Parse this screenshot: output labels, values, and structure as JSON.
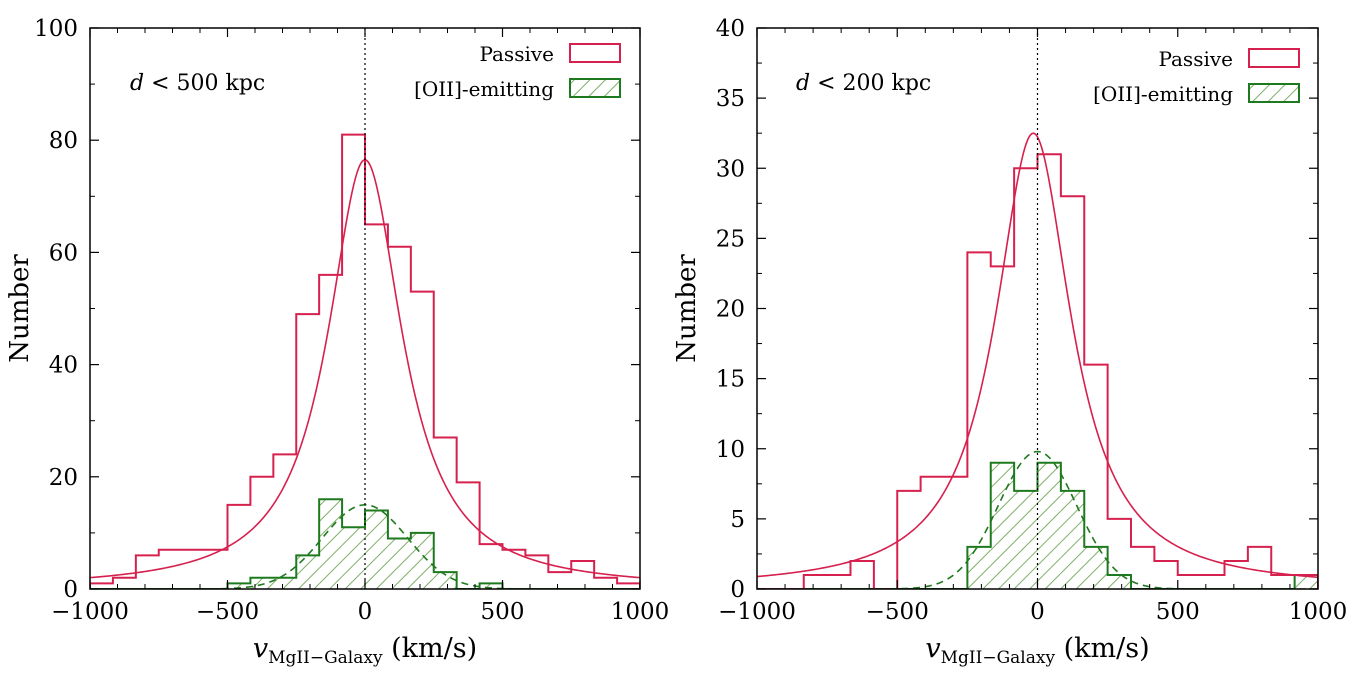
{
  "chart_data": [
    {
      "type": "histogram",
      "panel": "left",
      "annotation_text": "< 500 kpc",
      "annotation_var": "d",
      "xlabel_var": "v",
      "xlabel_sub": "MgII−Galaxy",
      "xlabel_unit": "(km/s)",
      "ylabel": "Number",
      "xlim": [
        -1000,
        1000
      ],
      "ylim": [
        0,
        100
      ],
      "xticks": [
        -1000,
        -500,
        0,
        500,
        1000
      ],
      "xtick_labels": [
        "−1000",
        "−500",
        "0",
        "500",
        "1000"
      ],
      "yticks": [
        0,
        20,
        40,
        60,
        80,
        100
      ],
      "ytick_labels": [
        "0",
        "20",
        "40",
        "60",
        "80",
        "100"
      ],
      "reference_line_x": 0,
      "legend": {
        "position": "top-right",
        "entries": [
          "Passive",
          "[OII]-emitting"
        ]
      },
      "colors": {
        "passive": "#d6204e",
        "oii": "#1e7a1e",
        "hatch_fill": "#7fae68"
      },
      "passive": {
        "name": "Passive",
        "bin_edges": [
          -1000,
          -916.7,
          -833.3,
          -750,
          -666.7,
          -583.3,
          -500,
          -416.7,
          -333.3,
          -250,
          -166.7,
          -83.3,
          0,
          83.3,
          166.7,
          250,
          333.3,
          416.7,
          500,
          583.3,
          666.7,
          750,
          833.3,
          916.7,
          1000
        ],
        "counts": [
          1,
          2,
          6,
          7,
          7,
          7,
          15,
          20,
          24,
          49,
          56,
          81,
          65,
          61,
          53,
          27,
          19,
          8,
          7,
          6,
          3,
          5,
          2,
          1
        ],
        "fit": {
          "model": "lorentzian",
          "amplitude": 76.5,
          "center": 0,
          "hwhm": 165
        }
      },
      "oii": {
        "name": "[OII]-emitting",
        "bin_edges": [
          -1000,
          -916.7,
          -833.3,
          -750,
          -666.7,
          -583.3,
          -500,
          -416.7,
          -333.3,
          -250,
          -166.7,
          -83.3,
          0,
          83.3,
          166.7,
          250,
          333.3,
          416.7,
          500,
          583.3,
          666.7,
          750,
          833.3,
          916.7,
          1000
        ],
        "counts": [
          0,
          0,
          0,
          0,
          0,
          0,
          1,
          2,
          2,
          6,
          16,
          11,
          14,
          9,
          10,
          3,
          0,
          1,
          0,
          0,
          0,
          0,
          0,
          0
        ],
        "fit": {
          "model": "gaussian",
          "amplitude": 15,
          "center": 0,
          "sigma": 155
        }
      }
    },
    {
      "type": "histogram",
      "panel": "right",
      "annotation_text": "< 200 kpc",
      "annotation_var": "d",
      "xlabel_var": "v",
      "xlabel_sub": "MgII−Galaxy",
      "xlabel_unit": "(km/s)",
      "ylabel": "Number",
      "xlim": [
        -1000,
        1000
      ],
      "ylim": [
        0,
        40
      ],
      "xticks": [
        -1000,
        -500,
        0,
        500,
        1000
      ],
      "xtick_labels": [
        "−1000",
        "−500",
        "0",
        "500",
        "1000"
      ],
      "yticks": [
        0,
        5,
        10,
        15,
        20,
        25,
        30,
        35,
        40
      ],
      "ytick_labels": [
        "0",
        "5",
        "10",
        "15",
        "20",
        "25",
        "30",
        "35",
        "40"
      ],
      "reference_line_x": 0,
      "legend": {
        "position": "top-right",
        "entries": [
          "Passive",
          "[OII]-emitting"
        ]
      },
      "colors": {
        "passive": "#d6204e",
        "oii": "#1e7a1e",
        "hatch_fill": "#7fae68"
      },
      "passive": {
        "name": "Passive",
        "bin_edges": [
          -1000,
          -916.7,
          -833.3,
          -750,
          -666.7,
          -583.3,
          -500,
          -416.7,
          -333.3,
          -250,
          -166.7,
          -83.3,
          0,
          83.3,
          166.7,
          250,
          333.3,
          416.7,
          500,
          583.3,
          666.7,
          750,
          833.3,
          916.7,
          1000
        ],
        "counts": [
          0,
          0,
          1,
          1,
          2,
          0,
          7,
          8,
          8,
          24,
          23,
          30,
          31,
          28,
          16,
          5,
          3,
          2,
          1,
          1,
          2,
          3,
          1,
          1
        ],
        "fit": {
          "model": "lorentzian",
          "amplitude": 32.5,
          "center": -15,
          "hwhm": 165
        }
      },
      "oii": {
        "name": "[OII]-emitting",
        "bin_edges": [
          -1000,
          -916.7,
          -833.3,
          -750,
          -666.7,
          -583.3,
          -500,
          -416.7,
          -333.3,
          -250,
          -166.7,
          -83.3,
          0,
          83.3,
          166.7,
          250,
          333.3,
          416.7,
          500,
          583.3,
          666.7,
          750,
          833.3,
          916.7,
          1000
        ],
        "counts": [
          0,
          0,
          0,
          0,
          0,
          0,
          0,
          0,
          0,
          3,
          9,
          7,
          9,
          7,
          3,
          1,
          0,
          0,
          0,
          0,
          0,
          0,
          0,
          1
        ],
        "fit": {
          "model": "gaussian",
          "amplitude": 9.8,
          "center": 0,
          "sigma": 140
        }
      }
    }
  ]
}
